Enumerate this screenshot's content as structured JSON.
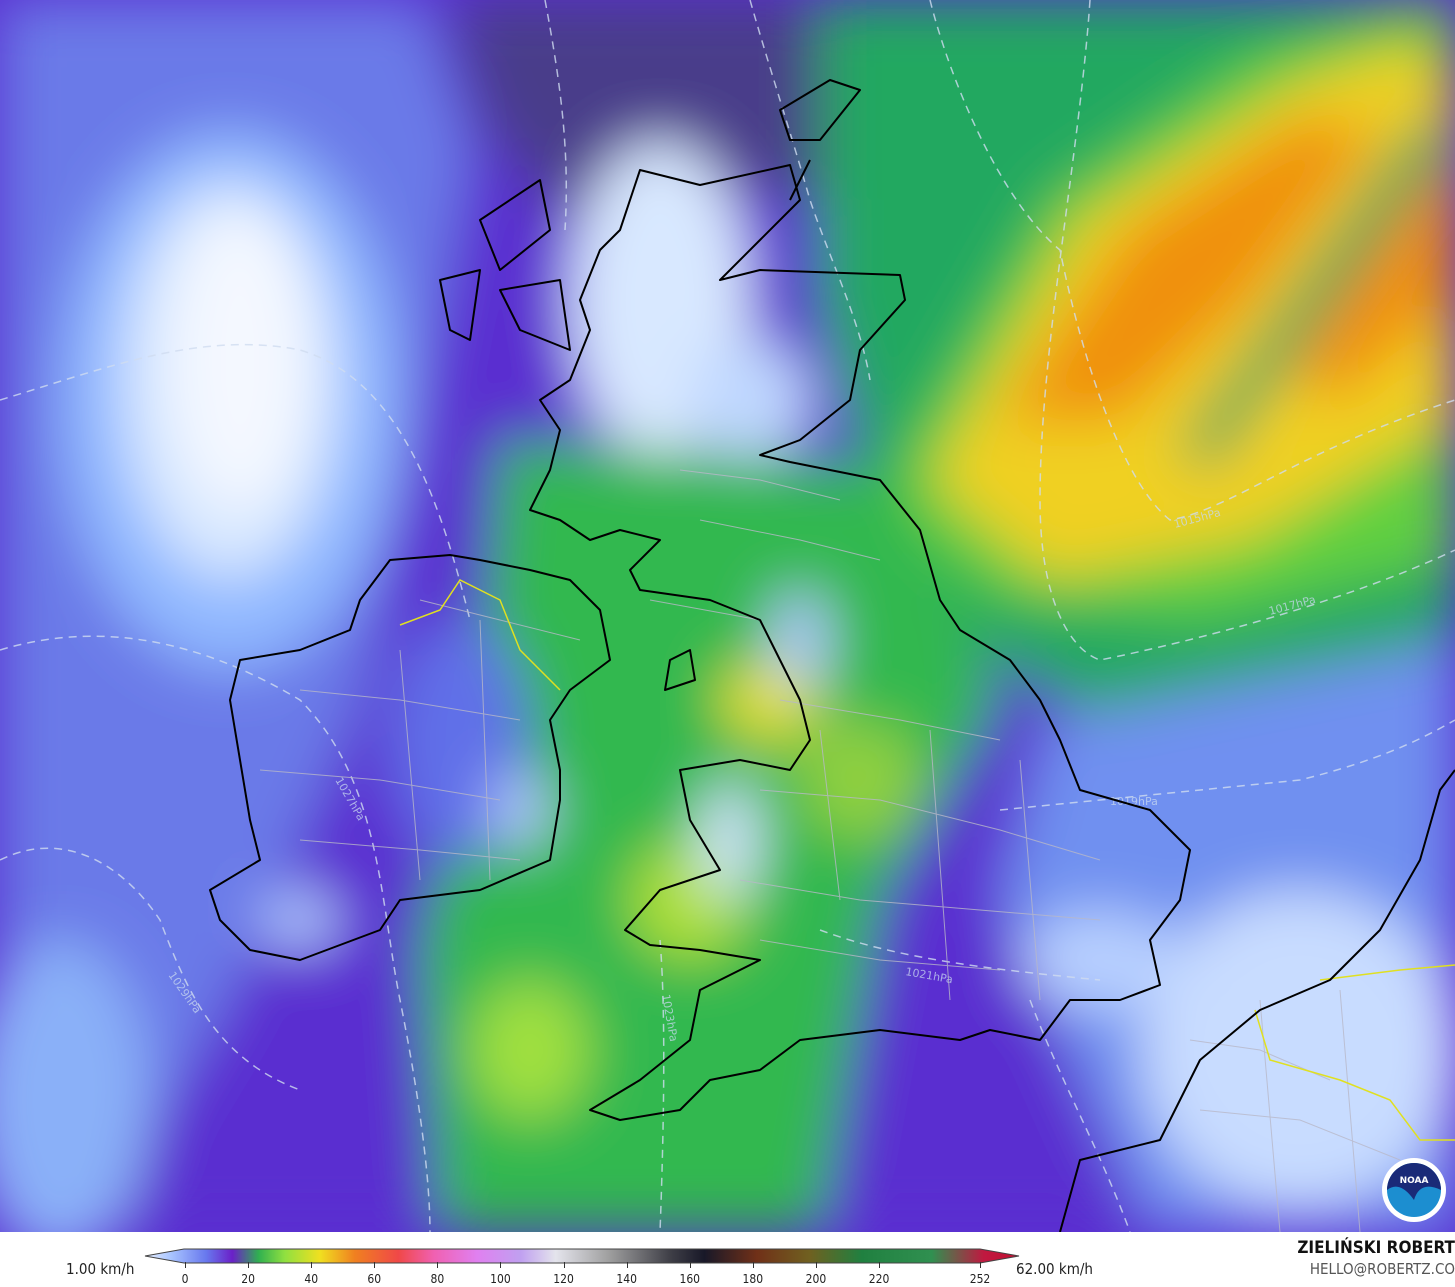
{
  "map": {
    "variable_unit": "km/h",
    "pressure_labels": [
      "1015hPa",
      "1017hPa",
      "1019hPa",
      "1021hPa",
      "1023hPa",
      "1027hPa",
      "1029hPa"
    ],
    "logo": "NOAA",
    "colors": {
      "background": "#5a2fd0",
      "calm": "#e0ecff",
      "moderate": "#30c050",
      "strong": "#f0d020",
      "very_strong": "#f08010",
      "coastline": "#000000",
      "borders": "#b0b0b0",
      "isobars": "#d0dcf0"
    }
  },
  "legend": {
    "min_label": "1.00 km/h",
    "max_label": "62.00 km/h",
    "ticks": [
      "0",
      "20",
      "40",
      "60",
      "80",
      "100",
      "120",
      "140",
      "160",
      "180",
      "200",
      "220",
      "252"
    ],
    "tick_values": [
      0,
      20,
      40,
      60,
      80,
      100,
      120,
      140,
      160,
      180,
      200,
      220,
      252
    ]
  },
  "credit": {
    "name": "ZIELIŃSKI ROBERT",
    "email": "HELLO@ROBERTZ.CO"
  }
}
